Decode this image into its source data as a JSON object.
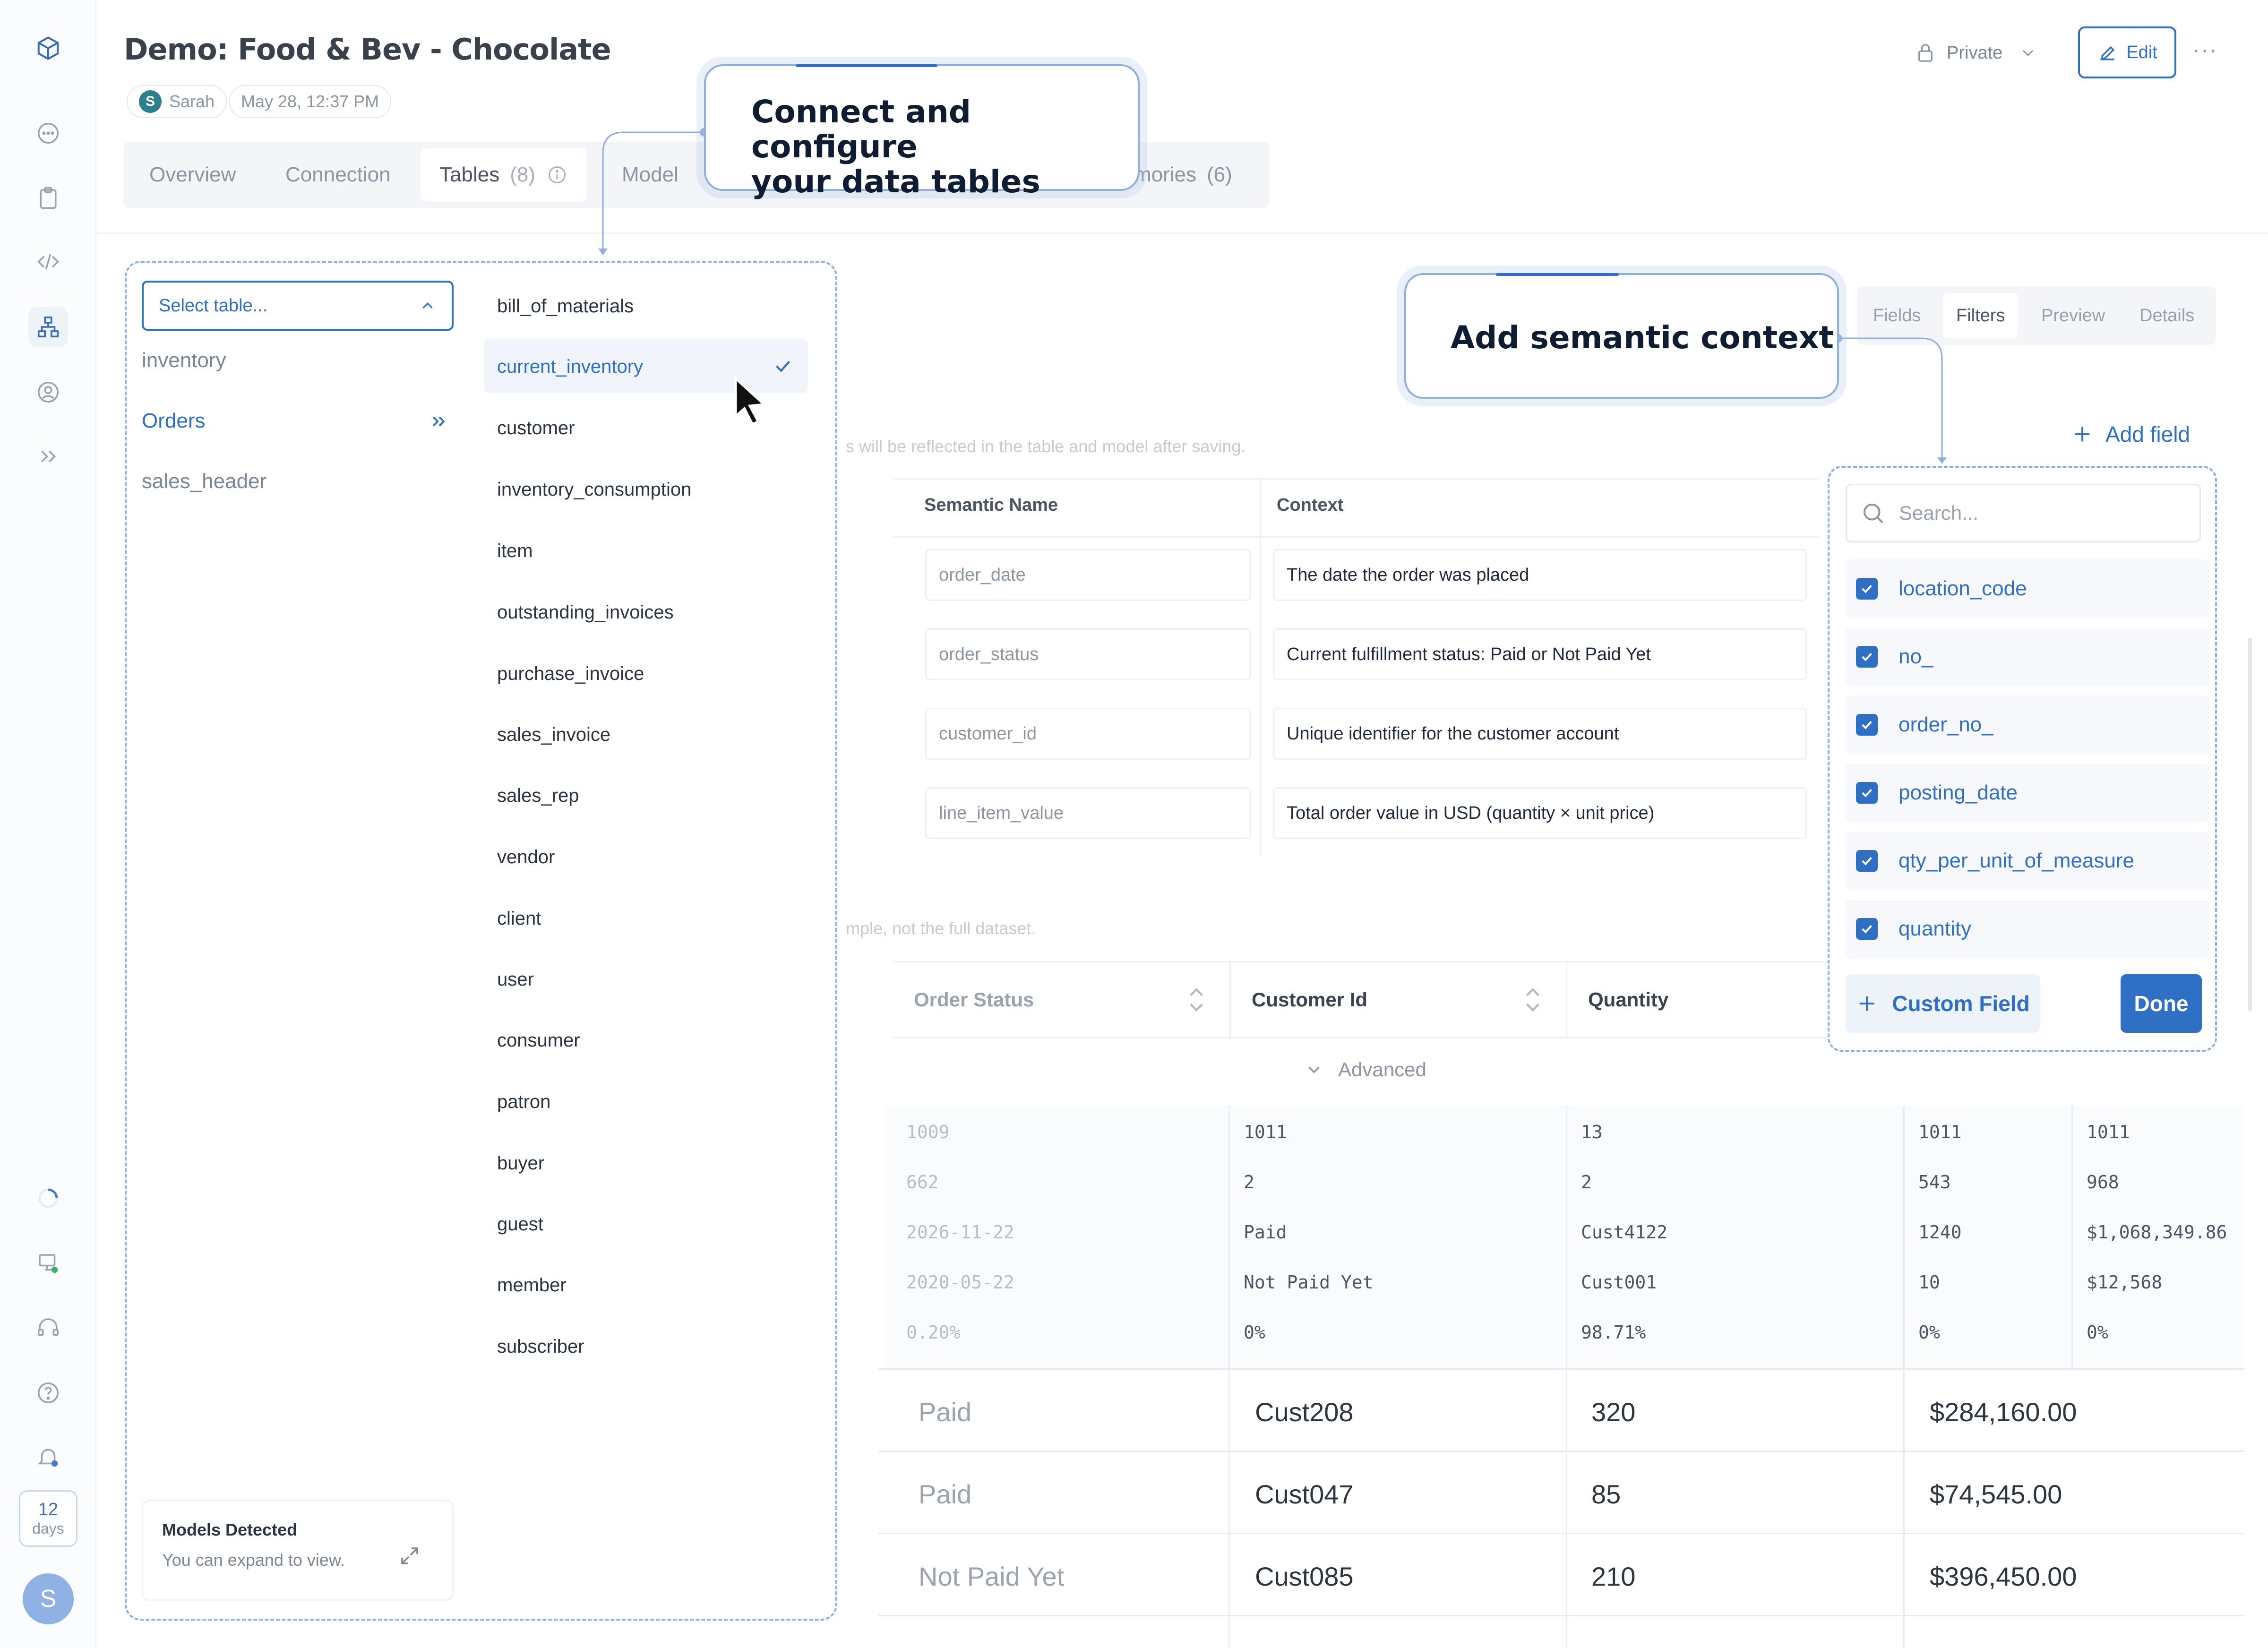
{
  "header": {
    "title": "Demo: Food & Bev - Chocolate",
    "user_initial": "S",
    "user_name": "Sarah",
    "date": "May 28, 12:37 PM",
    "privacy": "Private",
    "edit_label": "Edit",
    "more": "···"
  },
  "tabs": [
    {
      "label": "Overview"
    },
    {
      "label": "Connection"
    },
    {
      "label": "Tables",
      "count": "(8)"
    },
    {
      "label": "Model"
    },
    {
      "label": "mories",
      "count": "(6)"
    }
  ],
  "callouts": {
    "connect_line1": "Connect and configure",
    "connect_line2": "your data tables",
    "semantic": "Add semantic context"
  },
  "table_picker": {
    "placeholder": "Select table...",
    "left_tables": [
      "inventory",
      "Orders",
      "sales_header"
    ],
    "active_left": "Orders",
    "right_tables": [
      "bill_of_materials",
      "current_inventory",
      "customer",
      "inventory_consumption",
      "item",
      "outstanding_invoices",
      "purchase_invoice",
      "sales_invoice",
      "sales_rep",
      "vendor",
      "client",
      "user",
      "consumer",
      "patron",
      "buyer",
      "guest",
      "member",
      "subscriber"
    ],
    "selected_right": "current_inventory",
    "models_title": "Models Detected",
    "models_sub": "You can expand to view."
  },
  "subtabs": [
    "Fields",
    "Filters",
    "Preview",
    "Details"
  ],
  "active_subtab": "Filters",
  "add_field": "Add field",
  "notes": {
    "save_note": "s will be reflected in the table and model after saving.",
    "sample_note": "mple, not the full dataset."
  },
  "semantic_table": {
    "headers": [
      "Semantic Name",
      "Context"
    ],
    "rows": [
      {
        "name": "order_date",
        "context": "The date the order was placed"
      },
      {
        "name": "order_status",
        "context": "Current fulfillment status:  Paid or Not Paid Yet"
      },
      {
        "name": "customer_id",
        "context": "Unique identifier for the customer account"
      },
      {
        "name": "line_item_value",
        "context": "Total order value in USD (quantity × unit price)"
      }
    ]
  },
  "grid": {
    "headers": [
      "Order Status",
      "Customer Id",
      "Quantity"
    ],
    "advanced": "Advanced",
    "stats": [
      [
        "1009",
        "1011",
        "13",
        "1011",
        "1011"
      ],
      [
        "662",
        "2",
        "2",
        "543",
        "968"
      ],
      [
        "2026-11-22",
        "Paid",
        "Cust4122",
        "1240",
        "$1,068,349.86"
      ],
      [
        "2020-05-22",
        "Not Paid Yet",
        "Cust001",
        "10",
        "$12,568"
      ],
      [
        "0.20%",
        "0%",
        "98.71%",
        "0%",
        "0%"
      ]
    ],
    "rows": [
      [
        "Paid",
        "Cust208",
        "320",
        "$284,160.00"
      ],
      [
        "Paid",
        "Cust047",
        "85",
        "$74,545.00"
      ],
      [
        "Not Paid Yet",
        "Cust085",
        "210",
        "$396,450.00"
      ]
    ]
  },
  "field_popup": {
    "search_placeholder": "Search...",
    "fields": [
      "location_code",
      "no_",
      "order_no_",
      "posting_date",
      "qty_per_unit_of_measure",
      "quantity"
    ],
    "custom_field": "Custom Field",
    "done": "Done"
  },
  "sidebar": {
    "trial_days": "12",
    "trial_unit": "days",
    "avatar_initial": "S"
  },
  "colors": {
    "accent": "#2f6fc4",
    "callout_border": "#8fb0de",
    "tab_bg": "#f3f5f8"
  },
  "icons": [
    "cube-logo-icon",
    "chat-icon",
    "clipboard-icon",
    "code-icon",
    "hierarchy-icon",
    "settings-user-icon",
    "expand-sidebar-icon",
    "loading-icon",
    "monitor-status-icon",
    "headset-icon",
    "help-icon",
    "bell-icon",
    "lock-icon",
    "chevron-down-icon",
    "pencil-icon",
    "info-icon",
    "chevron-up-icon",
    "double-chevron-right-icon",
    "checkmark-icon",
    "cursor-icon",
    "expand-arrows-icon",
    "plus-icon",
    "search-icon",
    "sort-icon"
  ]
}
